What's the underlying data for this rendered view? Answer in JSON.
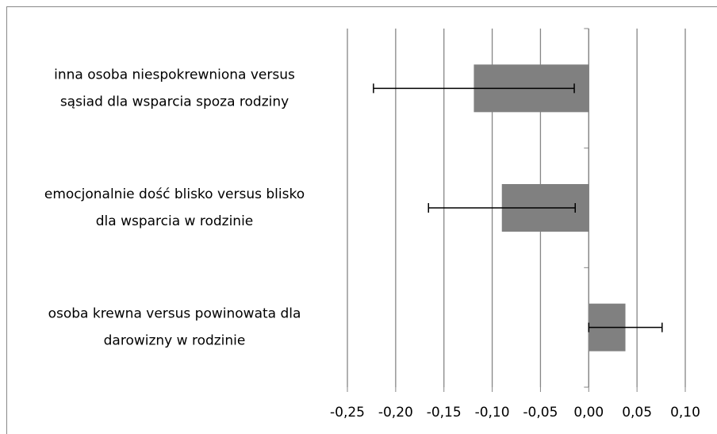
{
  "chart_data": {
    "type": "bar",
    "orientation": "horizontal",
    "categories": [
      [
        "inna osoba niespokrewniona versus",
        "sąsiad dla wsparcia spoza rodziny"
      ],
      [
        "emocjonalnie dość blisko versus blisko",
        "dla wsparcia w rodzinie"
      ],
      [
        "osoba krewna versus powinowata dla",
        "darowizny w rodzinie"
      ]
    ],
    "values": [
      -0.119,
      -0.09,
      0.038
    ],
    "errors": [
      0.104,
      0.076,
      0.038
    ],
    "color": "#808080",
    "xlim": [
      -0.25,
      0.1
    ],
    "xticks": [
      {
        "value": -0.25,
        "label": "-0,25"
      },
      {
        "value": -0.2,
        "label": "-0,20"
      },
      {
        "value": -0.15,
        "label": "-0,15"
      },
      {
        "value": -0.1,
        "label": "-0,10"
      },
      {
        "value": -0.05,
        "label": "-0,05"
      },
      {
        "value": 0,
        "label": "0,00"
      },
      {
        "value": 0.05,
        "label": "0,05"
      },
      {
        "value": 0.1,
        "label": "0,10"
      }
    ],
    "grid": true
  }
}
